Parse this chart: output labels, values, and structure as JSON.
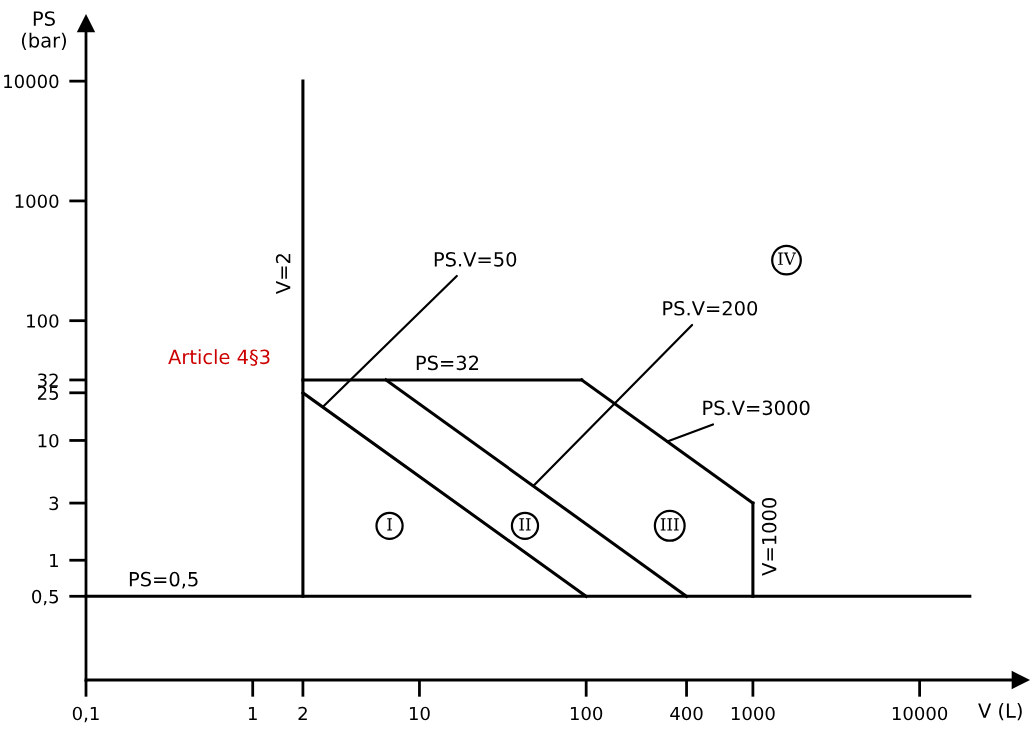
{
  "chart_data": {
    "type": "line",
    "xlabel": "V (L)",
    "ylabel": "PS\n(bar)",
    "log": "xy",
    "xlim": [
      0.1,
      40000
    ],
    "ylim": [
      0.1,
      30000
    ],
    "xticks": [
      {
        "value": 0.1,
        "label": "0,1"
      },
      1,
      2,
      10,
      100,
      400,
      1000,
      10000
    ],
    "yticks": [
      {
        "value": 0.5,
        "label": "0,5"
      },
      1,
      3,
      10,
      25,
      32,
      100,
      1000,
      10000
    ],
    "grid": false,
    "legend": false,
    "marker": "none",
    "line_style": "solid",
    "series": [
      {
        "name": "PS=0,5",
        "color": "#000000",
        "x": [
          0.1,
          20000
        ],
        "values": [
          0.5,
          0.5
        ]
      },
      {
        "name": "V=2",
        "color": "#000000",
        "x": [
          2,
          2
        ],
        "values": [
          0.5,
          10000
        ]
      },
      {
        "name": "PS=32",
        "color": "#000000",
        "x": [
          2,
          94
        ],
        "values": [
          32,
          32
        ]
      },
      {
        "name": "PS.V=3000",
        "color": "#000000",
        "x": [
          94,
          1000
        ],
        "values": [
          32,
          3
        ]
      },
      {
        "name": "V=1000",
        "color": "#000000",
        "x": [
          1000,
          1000
        ],
        "values": [
          3,
          0.5
        ]
      },
      {
        "name": "PS.V=50",
        "color": "#000000",
        "x": [
          2,
          100
        ],
        "values": [
          25,
          0.5
        ]
      },
      {
        "name": "PS.V=200",
        "color": "#000000",
        "x": [
          6.3,
          400
        ],
        "values": [
          32,
          0.5
        ]
      }
    ],
    "annotations": [
      "Article 4§3",
      "I",
      "II",
      "III",
      "IV"
    ]
  }
}
